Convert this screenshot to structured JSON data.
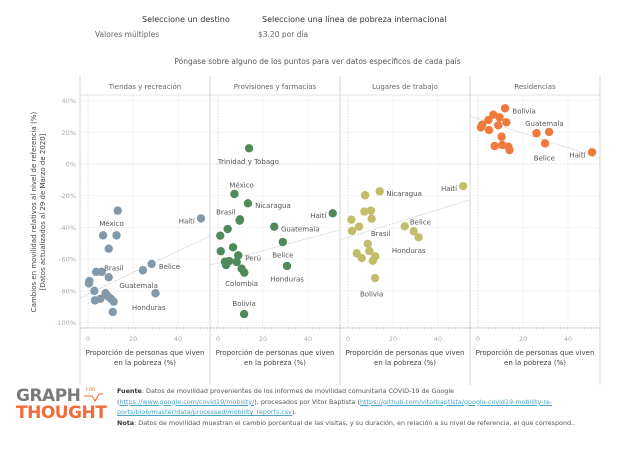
{
  "filters": {
    "destino": {
      "title": "Seleccione un destino",
      "value": "Valores múltiples"
    },
    "pobreza": {
      "title": "Seleccione una línea de pobreza internacional",
      "value": "$3.20 por día"
    }
  },
  "hint": "Póngase sobre alguno de los puntos para ver datos específicos de cada país",
  "footer": {
    "logo": {
      "line1": "GRAPH",
      "for": "FOR",
      "line2": "THOUGHT"
    },
    "source_label": "Fuente",
    "source_text_1": ": Datos de movilidad provenientes de los informes de movilidad comunitaria COVID-19 de Google",
    "source_link_1": "https://www.google.com/covid19/mobility/",
    "source_text_2": "), procesados por Vitor Baptista (",
    "source_link_2a": "https://github.com/vitorbaptista/google-covid19-mobility-re-",
    "source_link_2b": "ports/blob/master/data/processed/mobility_reports.csv",
    "source_text_3": ").",
    "note_label": "Nota",
    "note_text": ": Datos de movilidad muestran el cambio porcentual de las visitas, y su duración, en relación a su nivel de referencia, el que correspond.."
  },
  "chart_data": {
    "type": "scatter",
    "title": "",
    "ylabel_line1": "Cambios en movilidad relativos al nivel de referencia (%)",
    "ylabel_line2": "[Datos actualizados al 29 de Marzo de 2020]",
    "xlabel_line1": "Proporción de personas que viven",
    "xlabel_line2": "en la pobreza (%)",
    "ylim": [
      -103,
      47
    ],
    "xlim": [
      -4,
      55
    ],
    "y_ticks": [
      40,
      20,
      0,
      -20,
      -40,
      -60,
      -80,
      -100
    ],
    "y_tick_labels": [
      "40%",
      "20%",
      "0%",
      "-20%",
      "-40%",
      "-60%",
      "-80%",
      "-100%"
    ],
    "x_ticks": [
      0,
      20,
      40
    ],
    "x_tick_labels": [
      "0",
      "20",
      "40"
    ],
    "grid": true,
    "panels": [
      {
        "name": "Tiendas y recreación",
        "color": "#8199ab",
        "trend": [
          [
            -3.6,
            -84.5
          ],
          [
            54,
            -45.4
          ]
        ],
        "points": [
          {
            "x": 13.2,
            "y": -29.4
          },
          {
            "x": 50.2,
            "y": -34.3,
            "label": "Haití"
          },
          {
            "x": 6.7,
            "y": -45.0
          },
          {
            "x": 12.7,
            "y": -45.0,
            "label": "México"
          },
          {
            "x": 9.2,
            "y": -53.4
          },
          {
            "x": 28.3,
            "y": -63.0,
            "label": "Belice"
          },
          {
            "x": 24.4,
            "y": -67.0
          },
          {
            "x": 3.6,
            "y": -68.0
          },
          {
            "x": 6.1,
            "y": -68.0,
            "label": "Brasil"
          },
          {
            "x": 9.2,
            "y": -71.4
          },
          {
            "x": 0.6,
            "y": -73.8
          },
          {
            "x": 0.4,
            "y": -75.3
          },
          {
            "x": 2.8,
            "y": -80.0
          },
          {
            "x": 30.0,
            "y": -81.5,
            "label": "Guatemala"
          },
          {
            "x": 7.8,
            "y": -81.5
          },
          {
            "x": 9.0,
            "y": -83.6
          },
          {
            "x": 5.5,
            "y": -85.0
          },
          {
            "x": 3.1,
            "y": -86.0
          },
          {
            "x": 10.2,
            "y": -85.0
          },
          {
            "x": 11.4,
            "y": -86.8
          },
          {
            "x": 11.0,
            "y": -93.3
          }
        ],
        "labels": [
          {
            "text": "México",
            "x": 10.5,
            "y": -37.5,
            "anchor": "middle"
          },
          {
            "text": "Haití",
            "x": 47.5,
            "y": -35.8,
            "anchor": "end"
          },
          {
            "text": "Brasil",
            "x": 11.5,
            "y": -65.5,
            "anchor": "middle"
          },
          {
            "text": "Belice",
            "x": 31.5,
            "y": -64.5,
            "anchor": "start"
          },
          {
            "text": "Guatemala",
            "x": 22.5,
            "y": -76.5,
            "anchor": "middle"
          },
          {
            "text": "Honduras",
            "x": 27,
            "y": -90.5,
            "anchor": "middle"
          }
        ]
      },
      {
        "name": "Provisiones y farmacias",
        "color": "#4f8a5b",
        "trend": [
          [
            -3.6,
            -63.7
          ],
          [
            54,
            -41.6
          ]
        ],
        "points": [
          {
            "x": 13.8,
            "y": 9.9
          },
          {
            "x": 7.3,
            "y": -18.9
          },
          {
            "x": 13.3,
            "y": -24.8
          },
          {
            "x": 9.8,
            "y": -34.9
          },
          {
            "x": 9.6,
            "y": -35.7
          },
          {
            "x": 51.0,
            "y": -31.1
          },
          {
            "x": 4.3,
            "y": -41.0
          },
          {
            "x": 25.0,
            "y": -39.5
          },
          {
            "x": 1.0,
            "y": -45.2
          },
          {
            "x": 28.8,
            "y": -49.2
          },
          {
            "x": 6.7,
            "y": -52.5
          },
          {
            "x": 1.2,
            "y": -55.0
          },
          {
            "x": 9.0,
            "y": -57.6
          },
          {
            "x": 3.1,
            "y": -61.6
          },
          {
            "x": 5.0,
            "y": -61.2
          },
          {
            "x": 8.3,
            "y": -61.8
          },
          {
            "x": 3.6,
            "y": -63.7
          },
          {
            "x": 30.7,
            "y": -64.3
          },
          {
            "x": 10.5,
            "y": -66.0
          },
          {
            "x": 11.7,
            "y": -68.5
          },
          {
            "x": 11.6,
            "y": -94.6
          }
        ],
        "labels": [
          {
            "text": "Trinidad y Tobago",
            "x": 13.5,
            "y": 1.5,
            "anchor": "middle"
          },
          {
            "text": "México",
            "x": 10.5,
            "y": -13.2,
            "anchor": "middle"
          },
          {
            "text": "Nicaragua",
            "x": 16.5,
            "y": -26.3,
            "anchor": "start"
          },
          {
            "text": "Brasil",
            "x": 3.5,
            "y": -30.2,
            "anchor": "middle"
          },
          {
            "text": "Haití",
            "x": 48.2,
            "y": -32.6,
            "anchor": "end"
          },
          {
            "text": "Guatemala",
            "x": 28,
            "y": -41,
            "anchor": "start"
          },
          {
            "text": "Perú",
            "x": 12.2,
            "y": -59.3,
            "anchor": "start"
          },
          {
            "text": "Belice",
            "x": 28.8,
            "y": -57.5,
            "anchor": "middle"
          },
          {
            "text": "Colombia",
            "x": 10.5,
            "y": -75.5,
            "anchor": "middle"
          },
          {
            "text": "Honduras",
            "x": 30.7,
            "y": -72.5,
            "anchor": "middle"
          },
          {
            "text": "Bolivia",
            "x": 11.6,
            "y": -87.8,
            "anchor": "middle"
          }
        ]
      },
      {
        "name": "Lugares de trabajo",
        "color": "#c2bd6b",
        "trend": [
          [
            -3.6,
            -47.9
          ],
          [
            54,
            -22.7
          ]
        ],
        "points": [
          {
            "x": 51.2,
            "y": -13.9
          },
          {
            "x": 14.1,
            "y": -17.2
          },
          {
            "x": 7.6,
            "y": -19.7
          },
          {
            "x": 7.3,
            "y": -30.0
          },
          {
            "x": 10.2,
            "y": -29.4
          },
          {
            "x": 10.5,
            "y": -34.5
          },
          {
            "x": 1.5,
            "y": -35.1
          },
          {
            "x": 4.9,
            "y": -39.5
          },
          {
            "x": 25.2,
            "y": -39.3
          },
          {
            "x": 1.8,
            "y": -42.2
          },
          {
            "x": 29.2,
            "y": -42.4
          },
          {
            "x": 31.4,
            "y": -46.2
          },
          {
            "x": 8.8,
            "y": -50.3
          },
          {
            "x": 9.5,
            "y": -54.9
          },
          {
            "x": 3.9,
            "y": -56.3
          },
          {
            "x": 6.1,
            "y": -59.3
          },
          {
            "x": 12.1,
            "y": -58.2
          },
          {
            "x": 11.0,
            "y": -61.0
          },
          {
            "x": 12.0,
            "y": -71.9
          }
        ],
        "labels": [
          {
            "text": "Haití",
            "x": 48.5,
            "y": -15.5,
            "anchor": "end"
          },
          {
            "text": "Nicaragua",
            "x": 17,
            "y": -18.5,
            "anchor": "start"
          },
          {
            "text": "Belice",
            "x": 27.5,
            "y": -36.5,
            "anchor": "start"
          },
          {
            "text": "Brasil",
            "x": 14.5,
            "y": -43.7,
            "anchor": "middle"
          },
          {
            "text": "Honduras",
            "x": 27,
            "y": -54.5,
            "anchor": "middle"
          },
          {
            "text": "Bolivia",
            "x": 10.5,
            "y": -82,
            "anchor": "middle"
          }
        ]
      },
      {
        "name": "Residencias",
        "color": "#f07a3c",
        "trend": [
          [
            -3.6,
            30.3
          ],
          [
            54,
            3.8
          ]
        ],
        "points": [
          {
            "x": 12.0,
            "y": 35.1
          },
          {
            "x": 6.8,
            "y": 31.1
          },
          {
            "x": 9.6,
            "y": 29.4
          },
          {
            "x": 4.6,
            "y": 27.7
          },
          {
            "x": 12.6,
            "y": 26.3
          },
          {
            "x": 1.9,
            "y": 24.8
          },
          {
            "x": 1.3,
            "y": 23.1
          },
          {
            "x": 4.9,
            "y": 21.4
          },
          {
            "x": 9.0,
            "y": 24.4
          },
          {
            "x": 31.6,
            "y": 20.2
          },
          {
            "x": 26.0,
            "y": 19.4
          },
          {
            "x": 10.5,
            "y": 17.2
          },
          {
            "x": 29.8,
            "y": 13.0
          },
          {
            "x": 7.4,
            "y": 11.3
          },
          {
            "x": 10.8,
            "y": 12.0
          },
          {
            "x": 13.5,
            "y": 10.9
          },
          {
            "x": 14.0,
            "y": 8.8
          },
          {
            "x": 50.7,
            "y": 7.4
          }
        ],
        "labels": [
          {
            "text": "Bolivia",
            "x": 15.3,
            "y": 33.5,
            "anchor": "start"
          },
          {
            "text": "Guatemala",
            "x": 29.5,
            "y": 25.5,
            "anchor": "middle"
          },
          {
            "text": "Belice",
            "x": 29.5,
            "y": 3.8,
            "anchor": "middle"
          },
          {
            "text": "Haití",
            "x": 47.8,
            "y": 5.8,
            "anchor": "end"
          }
        ]
      }
    ]
  }
}
